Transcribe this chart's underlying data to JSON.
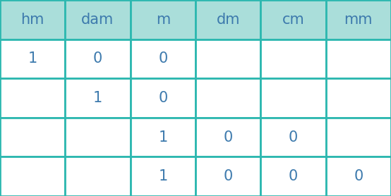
{
  "headers": [
    "hm",
    "dam",
    "m",
    "dm",
    "cm",
    "mm"
  ],
  "rows": [
    [
      "1",
      "0",
      "0",
      "",
      "",
      ""
    ],
    [
      "",
      "1",
      "0",
      "",
      "",
      ""
    ],
    [
      "",
      "",
      "1",
      "0",
      "0",
      ""
    ],
    [
      "",
      "",
      "1",
      "0",
      "0",
      "0"
    ]
  ],
  "header_bg": "#aadeda",
  "row_bg": "#ffffff",
  "grid_color": "#2db8b0",
  "text_color": "#3d7aad",
  "header_text_color": "#3d7aad",
  "num_cols": 6,
  "num_rows": 4,
  "fig_width": 5.54,
  "fig_height": 2.78,
  "font_size": 15,
  "header_font_size": 15,
  "line_width": 2.0
}
